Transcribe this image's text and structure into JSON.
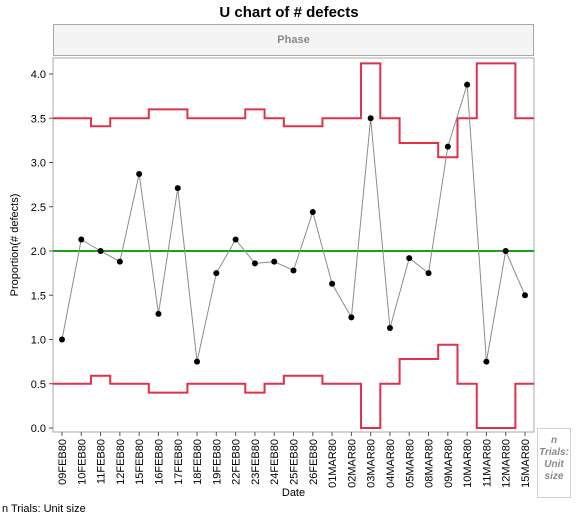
{
  "chart_data": {
    "type": "line",
    "title": "U chart of # defects",
    "phase_label": "Phase",
    "xlabel": "Date",
    "ylabel": "Proportion(# defects)",
    "ylim": [
      0,
      4.1
    ],
    "yticks": [
      0.0,
      0.5,
      1.0,
      1.5,
      2.0,
      2.5,
      3.0,
      3.5,
      4.0
    ],
    "ytick_labels": [
      "0.0",
      "0.5",
      "1.0",
      "1.5",
      "2.0",
      "2.5",
      "3.0",
      "3.5",
      "4.0"
    ],
    "categories": [
      "09FEB80",
      "10FEB80",
      "11FEB80",
      "12FEB80",
      "15FEB80",
      "16FEB80",
      "17FEB80",
      "18FEB80",
      "19FEB80",
      "22FEB80",
      "23FEB80",
      "24FEB80",
      "25FEB80",
      "26FEB80",
      "01MAR80",
      "02MAR80",
      "03MAR80",
      "04MAR80",
      "05MAR80",
      "08MAR80",
      "09MAR80",
      "10MAR80",
      "11MAR80",
      "12MAR80",
      "15MAR80"
    ],
    "values": [
      1.0,
      2.13,
      2.0,
      1.88,
      2.87,
      1.29,
      2.71,
      0.75,
      1.75,
      2.13,
      1.86,
      1.88,
      1.78,
      2.44,
      1.63,
      1.25,
      3.5,
      1.13,
      1.92,
      1.75,
      3.18,
      3.88,
      0.75,
      2.0,
      1.5
    ],
    "center_line": 2.0,
    "ucl": [
      3.5,
      3.5,
      3.41,
      3.5,
      3.5,
      3.6,
      3.6,
      3.5,
      3.5,
      3.5,
      3.6,
      3.5,
      3.41,
      3.41,
      3.5,
      3.5,
      4.12,
      3.5,
      3.22,
      3.22,
      3.06,
      3.5,
      4.12,
      4.12,
      3.5
    ],
    "lcl": [
      0.5,
      0.5,
      0.59,
      0.5,
      0.5,
      0.4,
      0.4,
      0.5,
      0.5,
      0.5,
      0.4,
      0.5,
      0.59,
      0.59,
      0.5,
      0.5,
      0.0,
      0.5,
      0.78,
      0.78,
      0.94,
      0.5,
      0.0,
      0.0,
      0.5
    ],
    "colors": {
      "limits": "#e0304a",
      "center": "#1aa01a",
      "points": "#000000",
      "connector": "#8c8c8c"
    },
    "legend": {
      "line1": "n",
      "line2": "Trials:",
      "line3": "Unit",
      "line4": "size"
    },
    "footer": "n Trials: Unit size"
  }
}
